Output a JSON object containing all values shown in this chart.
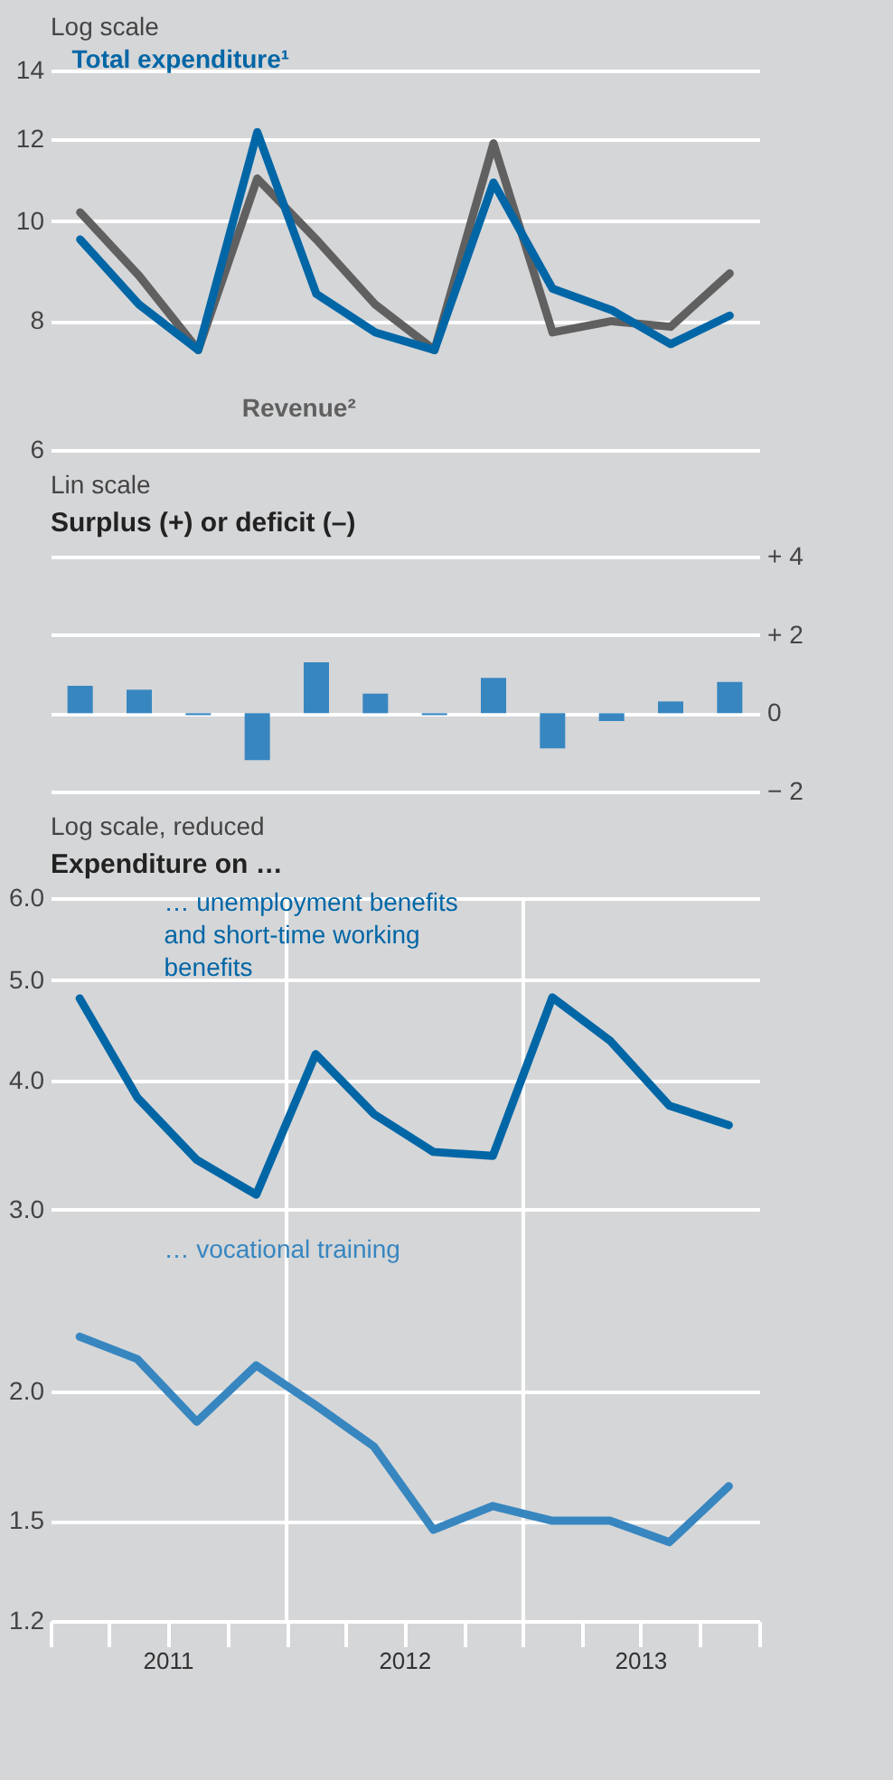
{
  "chart_data": [
    {
      "type": "line",
      "subtitle": "Log scale",
      "log": true,
      "grid": "y",
      "tick_labels": "y",
      "categories": [
        null,
        null,
        null,
        null,
        null,
        null,
        null,
        null,
        null,
        null,
        null,
        null
      ],
      "ylim": [
        6,
        14
      ],
      "yticks": [
        6,
        8,
        10,
        12,
        14
      ],
      "series": [
        {
          "name": "Revenue²",
          "color": "#606060",
          "values": [
            10.2,
            8.85,
            7.5,
            11.0,
            9.6,
            8.3,
            7.5,
            11.9,
            7.8,
            8.0,
            7.9,
            8.9
          ]
        },
        {
          "name": "Total expenditure¹",
          "color": "#0066a6",
          "values": [
            9.6,
            8.3,
            7.5,
            12.2,
            8.5,
            7.8,
            7.5,
            10.9,
            8.6,
            8.2,
            7.6,
            8.1
          ]
        }
      ]
    },
    {
      "type": "bar",
      "subtitle": "Lin scale",
      "title": "Surplus (+) or deficit (–)",
      "grid": "y",
      "tick_labels": "y2",
      "categories": [
        null,
        null,
        null,
        null,
        null,
        null,
        null,
        null,
        null,
        null,
        null,
        null
      ],
      "y2lim": [
        -2,
        4
      ],
      "y2ticks": [
        {
          "value": 4,
          "label": "+ 4"
        },
        {
          "value": 2,
          "label": "+ 2"
        },
        0,
        {
          "value": -2,
          "label": "− 2"
        }
      ],
      "series": [
        {
          "axis": "y2",
          "color": "#3786c0",
          "values": [
            0.7,
            0.6,
            -0.05,
            -1.2,
            1.3,
            0.5,
            -0.05,
            0.9,
            -0.9,
            -0.2,
            0.3,
            0.8
          ]
        }
      ]
    },
    {
      "type": "line",
      "subtitle": "Log scale, reduced",
      "title": "Expenditure on …",
      "log": true,
      "grid": "y",
      "x": [
        "2011-02-15",
        "2011-05-15",
        "2011-08-15",
        "2011-11-15",
        "2012-02-15",
        "2012-05-15",
        "2012-08-15",
        "2012-11-15",
        "2013-02-15",
        "2013-05-15",
        "2013-08-15",
        "2013-11-15"
      ],
      "xlim": [
        "2011-01-01",
        "2014-01-01"
      ],
      "xticks": [
        {
          "value": "2011-01-01",
          "label": null
        },
        {
          "value": "2011-04-01",
          "label": null
        },
        {
          "value": "2011-07-01",
          "label": "2011"
        },
        {
          "value": "2011-10-01",
          "label": null
        },
        {
          "value": "2012-01-01",
          "label": null
        },
        {
          "value": "2012-04-01",
          "label": null
        },
        {
          "value": "2012-07-01",
          "label": "2012"
        },
        {
          "value": "2012-10-01",
          "label": null
        },
        {
          "value": "2013-01-01",
          "label": null
        },
        {
          "value": "2013-04-01",
          "label": null
        },
        {
          "value": "2013-07-01",
          "label": "2013"
        },
        {
          "value": "2013-10-01",
          "label": null
        },
        {
          "value": "2014-01-01",
          "label": null
        }
      ],
      "ylim": [
        1.2,
        6
      ],
      "yticks": [
        {
          "value": 6,
          "label": "6.0"
        },
        {
          "value": 5,
          "label": "5.0"
        },
        {
          "value": 4,
          "label": "4.0"
        },
        {
          "value": 3,
          "label": "3.0"
        },
        {
          "value": 2,
          "label": "2.0"
        },
        1.5,
        1.2
      ],
      "ref_lines": [
        {
          "axis": "x",
          "value": "2012-01-01",
          "color": "#ffffff"
        },
        {
          "axis": "x",
          "value": "2013-01-01",
          "color": "#ffffff"
        }
      ],
      "series": [
        {
          "name": "… unemployment benefits and short-time working benefits",
          "color": "#0066a6",
          "values": [
            4.8,
            3.85,
            3.35,
            3.1,
            4.24,
            3.71,
            3.41,
            3.38,
            4.81,
            4.37,
            3.78,
            3.62
          ]
        },
        {
          "name": "… vocational training",
          "color": "#3786c0",
          "values": [
            2.26,
            2.15,
            1.87,
            2.12,
            1.94,
            1.77,
            1.47,
            1.55,
            1.5,
            1.5,
            1.43,
            1.62
          ]
        }
      ]
    }
  ]
}
